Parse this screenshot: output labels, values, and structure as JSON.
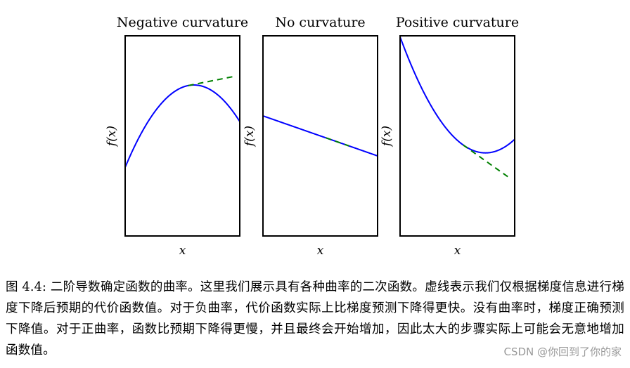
{
  "chart_data": [
    {
      "type": "line",
      "title": "Negative curvature",
      "xlabel": "x",
      "ylabel": "f(x)",
      "function": {
        "a": -1,
        "b": 0.4
      },
      "xlim": [
        -1,
        1
      ],
      "ylim": [
        -2.6,
        0.9
      ],
      "tangent_x": [
        0.1,
        0.9
      ],
      "series": [
        {
          "style": "solid",
          "color": "#0000ff"
        },
        {
          "style": "dashed",
          "color": "#008000"
        }
      ]
    },
    {
      "type": "line",
      "title": "No curvature",
      "xlabel": "x",
      "ylabel": "f(x)",
      "function": {
        "a": 0,
        "b": -0.2
      },
      "xlim": [
        -1,
        1
      ],
      "ylim": [
        -1,
        1
      ],
      "tangent_x": [
        0.1,
        0.5
      ],
      "series": [
        {
          "style": "solid",
          "color": "#0000ff"
        },
        {
          "style": "dashed",
          "color": "#008000"
        }
      ]
    },
    {
      "type": "line",
      "title": "Positive curvature",
      "xlabel": "x",
      "ylabel": "f(x)",
      "function": {
        "a": 1,
        "b": -0.98
      },
      "xlim": [
        -1,
        1
      ],
      "ylim": [
        -1.83,
        2.0
      ],
      "tangent_x": [
        0.1,
        0.9
      ],
      "series": [
        {
          "style": "solid",
          "color": "#0000ff"
        },
        {
          "style": "dashed",
          "color": "#008000"
        }
      ]
    }
  ],
  "caption": "图 4.4: 二阶导数确定函数的曲率。这里我们展示具有各种曲率的二次函数。虚线表示我们仅根据梯度信息进行梯度下降后预期的代价函数值。对于负曲率，代价函数实际上比梯度预测下降得更快。没有曲率时，梯度正确预测下降值。对于正曲率，函数比预期下降得更慢，并且最终会开始增加，因此太大的步骤实际上可能会无意地增加函数值。",
  "watermark": "CSDN @你回到了你的家"
}
